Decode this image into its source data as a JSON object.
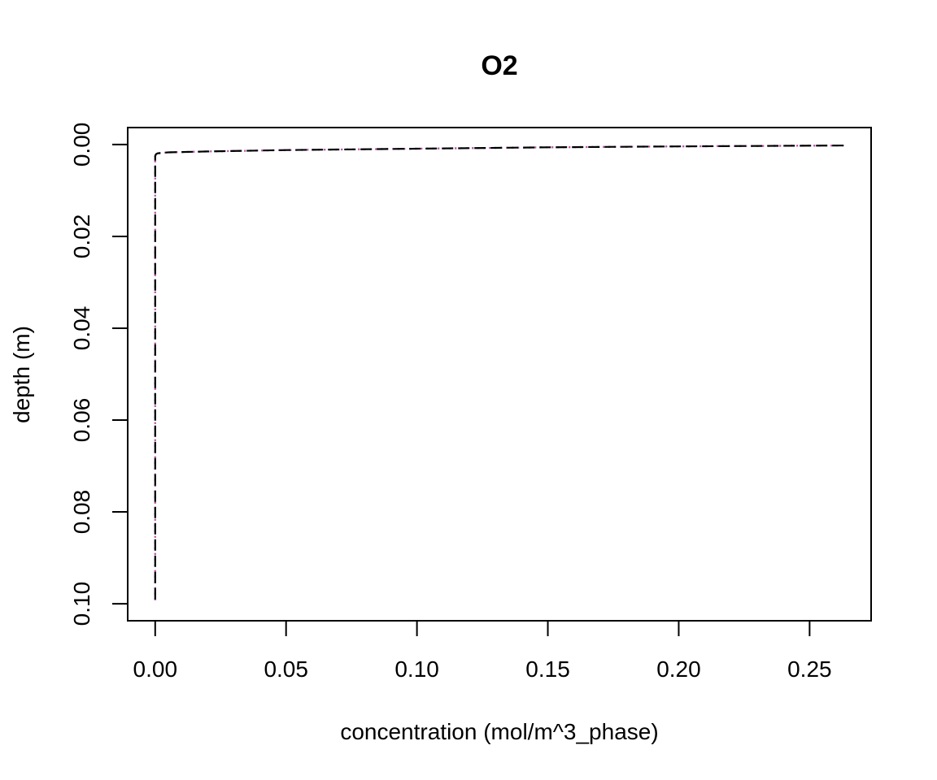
{
  "chart_data": {
    "type": "line",
    "title": "O2",
    "xlabel": "concentration (mol/m^3_phase)",
    "ylabel": "depth (m)",
    "xlim": [
      -0.0105,
      0.2735
    ],
    "ylim": [
      0.1037,
      -0.0037
    ],
    "y_reversed": true,
    "grid": false,
    "x_ticks": [
      {
        "value": 0.0,
        "label": "0.00"
      },
      {
        "value": 0.05,
        "label": "0.05"
      },
      {
        "value": 0.1,
        "label": "0.10"
      },
      {
        "value": 0.15,
        "label": "0.15"
      },
      {
        "value": 0.2,
        "label": "0.20"
      },
      {
        "value": 0.25,
        "label": "0.25"
      }
    ],
    "y_ticks": [
      {
        "value": 0.0,
        "label": "0.00"
      },
      {
        "value": 0.02,
        "label": "0.02"
      },
      {
        "value": 0.04,
        "label": "0.04"
      },
      {
        "value": 0.06,
        "label": "0.06"
      },
      {
        "value": 0.08,
        "label": "0.08"
      },
      {
        "value": 0.1,
        "label": "0.10"
      }
    ],
    "series": [
      {
        "color": "#00bcd4",
        "dash": "dotted",
        "points": [
          [
            0.263,
            0.0002
          ],
          [
            0.2,
            0.0004
          ],
          [
            0.15,
            0.0006
          ],
          [
            0.1,
            0.0009
          ],
          [
            0.05,
            0.0012
          ],
          [
            0.02,
            0.0015
          ],
          [
            0.005,
            0.0017
          ],
          [
            0.001,
            0.0019
          ],
          [
            0.0003,
            0.0021
          ],
          [
            0.0,
            0.0025
          ],
          [
            0.0,
            0.01
          ],
          [
            0.0,
            0.05
          ],
          [
            0.0,
            0.1
          ]
        ]
      },
      {
        "color": "#e040b0",
        "dash": "dotted",
        "points": [
          [
            0.263,
            0.0002
          ],
          [
            0.2,
            0.0004
          ],
          [
            0.15,
            0.0006
          ],
          [
            0.1,
            0.0009
          ],
          [
            0.05,
            0.0012
          ],
          [
            0.02,
            0.0015
          ],
          [
            0.005,
            0.0017
          ],
          [
            0.001,
            0.0019
          ],
          [
            0.0003,
            0.0021
          ],
          [
            0.0,
            0.0025
          ],
          [
            0.0,
            0.01
          ],
          [
            0.0,
            0.05
          ],
          [
            0.0,
            0.1
          ]
        ]
      },
      {
        "color": "#000000",
        "dash": "dashed",
        "points": [
          [
            0.263,
            0.0002
          ],
          [
            0.2,
            0.0004
          ],
          [
            0.15,
            0.0006
          ],
          [
            0.1,
            0.0009
          ],
          [
            0.05,
            0.0012
          ],
          [
            0.02,
            0.0015
          ],
          [
            0.005,
            0.0017
          ],
          [
            0.001,
            0.0019
          ],
          [
            0.0003,
            0.0021
          ],
          [
            0.0,
            0.0025
          ],
          [
            0.0,
            0.01
          ],
          [
            0.0,
            0.05
          ],
          [
            0.0,
            0.1
          ]
        ]
      }
    ]
  }
}
